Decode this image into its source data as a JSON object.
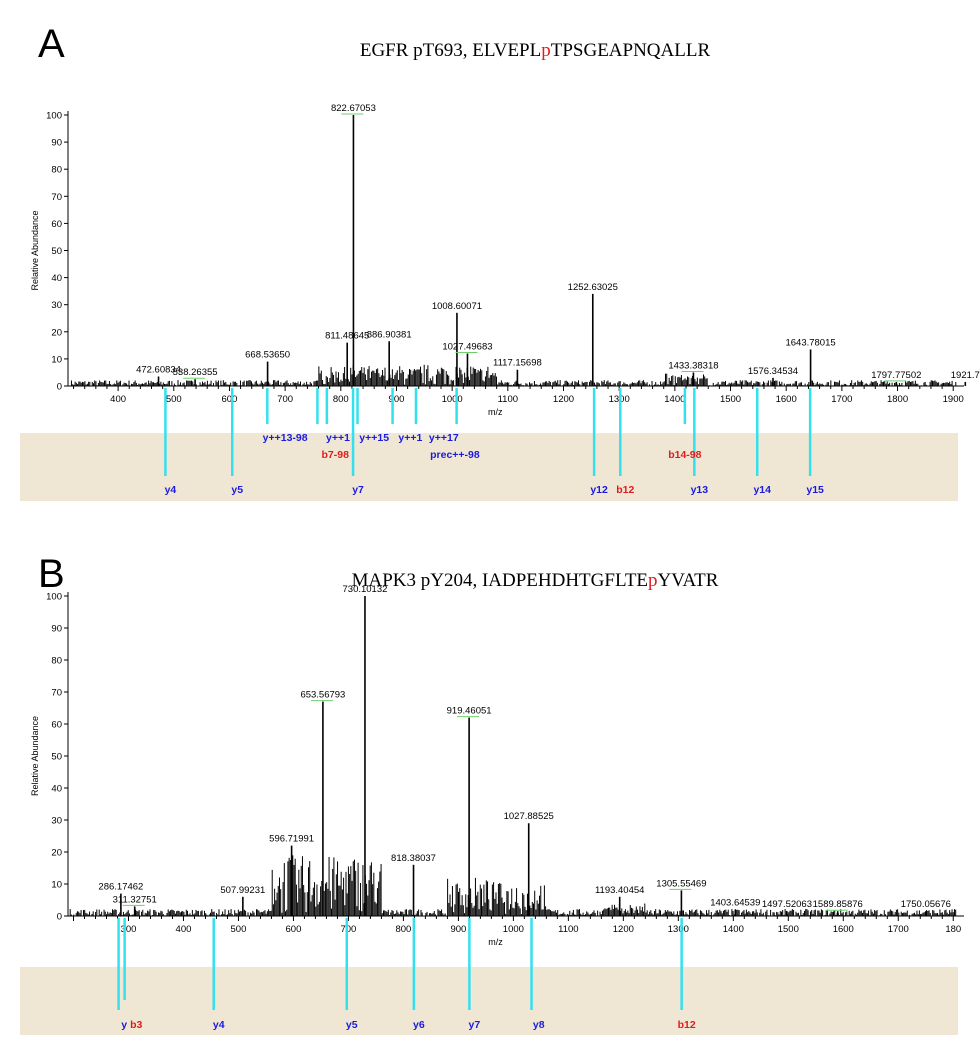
{
  "colors": {
    "band": "#efe7d4",
    "marker": "#33e0ee",
    "y_ion": "#1a1ae0",
    "b_ion": "#e01b1b",
    "mod": "#e01b1b",
    "spectrum": "#000000",
    "annotation": "#6fcf6f"
  },
  "chart_data": [
    {
      "type": "bar",
      "panel": "A",
      "title": {
        "prefix": "EGFR pT693, ELVEPL",
        "mod": "p",
        "suffix": "TPSGEAPNQALLR"
      },
      "xlabel": "m/z",
      "ylabel": "Relative Abundance",
      "xlim": [
        310,
        1905
      ],
      "ylim": [
        0,
        100
      ],
      "x_ticks": [
        "400",
        "500",
        "600",
        "700",
        "800",
        "900",
        "1000",
        "1100",
        "1200",
        "1300",
        "1400",
        "1500",
        "1600",
        "1700",
        "1800",
        "1900"
      ],
      "y_ticks": [
        "0",
        "10",
        "20",
        "30",
        "40",
        "50",
        "60",
        "70",
        "80",
        "90",
        "100"
      ],
      "peaks": [
        {
          "x": 472.6,
          "y": 3.5,
          "label": "472.60834"
        },
        {
          "x": 538.3,
          "y": 2.5,
          "label": "538.26355"
        },
        {
          "x": 668.5,
          "y": 9,
          "label": "668.53650"
        },
        {
          "x": 811.5,
          "y": 16,
          "label": "811.48645"
        },
        {
          "x": 822.7,
          "y": 100,
          "label": "822.67053"
        },
        {
          "x": 886.9,
          "y": 16.5,
          "label": "886.90381"
        },
        {
          "x": 1008.6,
          "y": 27,
          "label": "1008.60071"
        },
        {
          "x": 1027.5,
          "y": 12,
          "label": "1027.49683"
        },
        {
          "x": 1117.2,
          "y": 6,
          "label": "1117.15698"
        },
        {
          "x": 1252.6,
          "y": 34,
          "label": "1252.63025"
        },
        {
          "x": 1433.4,
          "y": 5,
          "label": "1433.38318"
        },
        {
          "x": 1576.3,
          "y": 3,
          "label": "1576.34534"
        },
        {
          "x": 1643.8,
          "y": 13.5,
          "label": "1643.78015"
        },
        {
          "x": 1797.8,
          "y": 1.5,
          "label": "1797.77502"
        },
        {
          "x": 1921.7,
          "y": 1.5,
          "label": "1921.7"
        }
      ],
      "ions": [
        {
          "x": 485,
          "label": "y4",
          "kind": "y",
          "row": 2
        },
        {
          "x": 605,
          "label": "y5",
          "kind": "y",
          "row": 2
        },
        {
          "x": 822,
          "label": "y7",
          "kind": "y",
          "row": 2
        },
        {
          "x": 1255,
          "label": "y12",
          "kind": "y",
          "row": 2
        },
        {
          "x": 1302,
          "label": "b12",
          "kind": "b",
          "row": 2
        },
        {
          "x": 1435,
          "label": "y13",
          "kind": "y",
          "row": 2
        },
        {
          "x": 1548,
          "label": "y14",
          "kind": "y",
          "row": 2
        },
        {
          "x": 1643,
          "label": "y15",
          "kind": "y",
          "row": 2
        },
        {
          "x": 790,
          "label": "b7-98",
          "kind": "b",
          "row": 1
        },
        {
          "x": 1005,
          "label": "prec++-98",
          "kind": "y",
          "row": 1
        },
        {
          "x": 1418,
          "label": "b14-98",
          "kind": "b",
          "row": 1
        },
        {
          "x": 700,
          "label": "y++13-98",
          "kind": "y",
          "row": 0
        },
        {
          "x": 795,
          "label": "y++1",
          "kind": "y",
          "row": 0
        },
        {
          "x": 860,
          "label": "y++15",
          "kind": "y",
          "row": 0
        },
        {
          "x": 925,
          "label": "y++1",
          "kind": "y",
          "row": 0
        },
        {
          "x": 985,
          "label": "y++17",
          "kind": "y",
          "row": 0
        }
      ],
      "ion_markers": [
        485,
        605,
        668,
        758,
        775,
        822,
        830,
        893,
        935,
        1008,
        1255,
        1302,
        1418,
        1435,
        1548,
        1643
      ]
    },
    {
      "type": "bar",
      "panel": "B",
      "title": {
        "prefix": "MAPK3 pY204, IADPEHDHTGFLTE",
        "mod": "p",
        "suffix": "YVATR"
      },
      "xlabel": "m/z",
      "ylabel": "Relative Abundance",
      "xlim": [
        190,
        1805
      ],
      "ylim": [
        0,
        100
      ],
      "x_ticks": [
        "300",
        "400",
        "500",
        "600",
        "700",
        "800",
        "900",
        "1000",
        "1100",
        "1200",
        "1300",
        "1400",
        "1500",
        "1600",
        "1700",
        "180"
      ],
      "y_ticks": [
        "0",
        "10",
        "20",
        "30",
        "40",
        "50",
        "60",
        "70",
        "80",
        "90",
        "100"
      ],
      "peaks": [
        {
          "x": 286.2,
          "y": 7,
          "label": "286.17462"
        },
        {
          "x": 311.3,
          "y": 3,
          "label": "311.32751"
        },
        {
          "x": 508.0,
          "y": 6,
          "label": "507.99231"
        },
        {
          "x": 596.7,
          "y": 22,
          "label": "596.71991"
        },
        {
          "x": 653.6,
          "y": 67,
          "label": "653.56793"
        },
        {
          "x": 730.1,
          "y": 100,
          "label": "730.10132"
        },
        {
          "x": 818.4,
          "y": 16,
          "label": "818.38037"
        },
        {
          "x": 919.5,
          "y": 62,
          "label": "919.46051"
        },
        {
          "x": 1027.9,
          "y": 29,
          "label": "1027.88525"
        },
        {
          "x": 1193.4,
          "y": 6,
          "label": "1193.40454"
        },
        {
          "x": 1305.6,
          "y": 8,
          "label": "1305.55469"
        },
        {
          "x": 1403.6,
          "y": 2,
          "label": "1403.64539"
        },
        {
          "x": 1497.5,
          "y": 1.5,
          "label": "1497.52063"
        },
        {
          "x": 1589.9,
          "y": 1.5,
          "label": "1589.85876"
        },
        {
          "x": 1750.1,
          "y": 1.5,
          "label": "1750.05676"
        }
      ],
      "ions": [
        {
          "x": 283,
          "label": "y",
          "kind": "y",
          "row": 2
        },
        {
          "x": 305,
          "label": "b3",
          "kind": "b",
          "row": 2
        },
        {
          "x": 455,
          "label": "y4",
          "kind": "y",
          "row": 2
        },
        {
          "x": 697,
          "label": "y5",
          "kind": "y",
          "row": 2
        },
        {
          "x": 819,
          "label": "y6",
          "kind": "y",
          "row": 2
        },
        {
          "x": 920,
          "label": "y7",
          "kind": "y",
          "row": 2
        },
        {
          "x": 1037,
          "label": "y8",
          "kind": "y",
          "row": 2
        },
        {
          "x": 1306,
          "label": "b12",
          "kind": "b",
          "row": 2
        }
      ],
      "ion_markers": [
        282,
        293,
        455,
        697,
        819,
        920,
        1033,
        1306
      ]
    }
  ]
}
